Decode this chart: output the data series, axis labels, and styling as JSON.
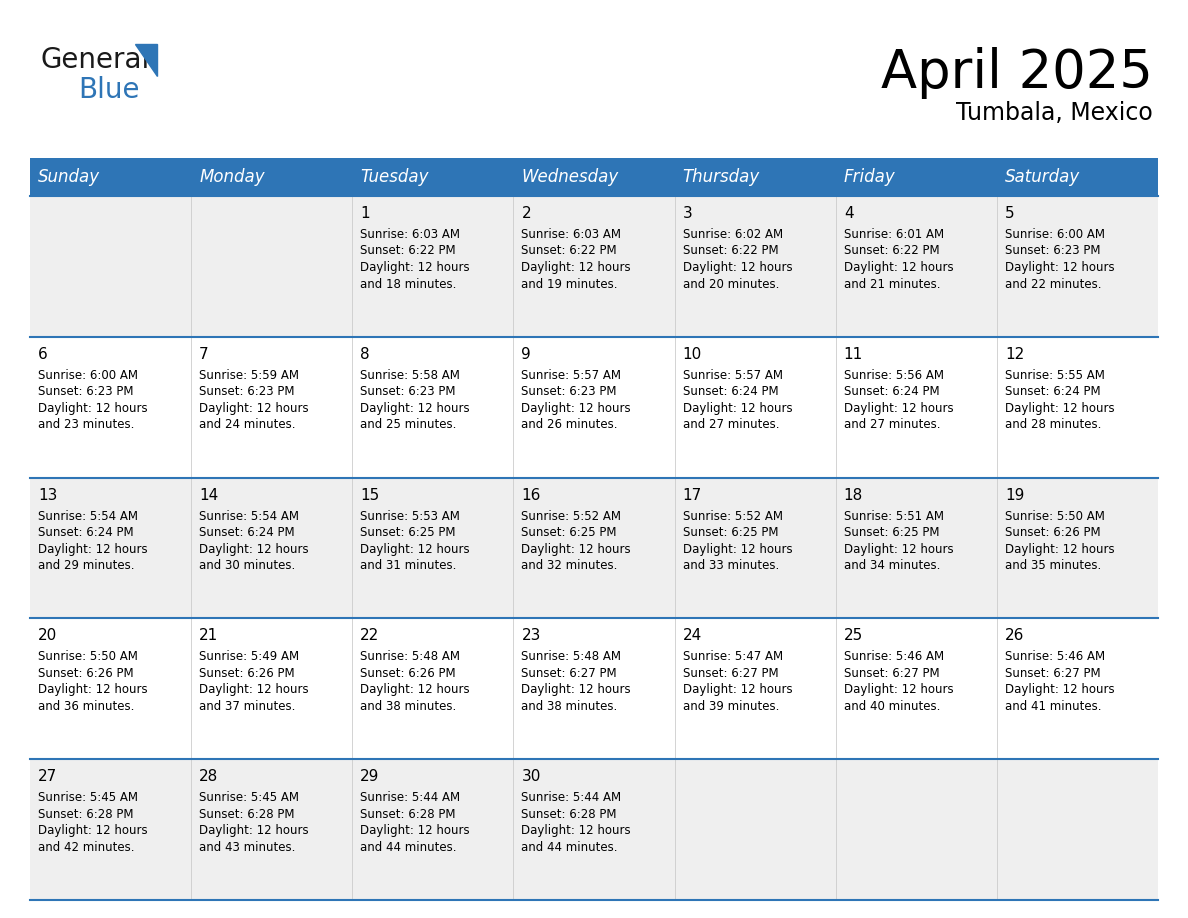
{
  "title": "April 2025",
  "subtitle": "Tumbala, Mexico",
  "header_color": "#2E75B6",
  "header_text_color": "#FFFFFF",
  "cell_bg_white": "#FFFFFF",
  "cell_bg_gray": "#EFEFEF",
  "border_color": "#2E75B6",
  "text_color": "#000000",
  "days_of_week": [
    "Sunday",
    "Monday",
    "Tuesday",
    "Wednesday",
    "Thursday",
    "Friday",
    "Saturday"
  ],
  "weeks": [
    [
      {
        "day": "",
        "sunrise": "",
        "sunset": "",
        "daylight": ""
      },
      {
        "day": "",
        "sunrise": "",
        "sunset": "",
        "daylight": ""
      },
      {
        "day": "1",
        "sunrise": "6:03 AM",
        "sunset": "6:22 PM",
        "daylight": "12 hours and 18 minutes."
      },
      {
        "day": "2",
        "sunrise": "6:03 AM",
        "sunset": "6:22 PM",
        "daylight": "12 hours and 19 minutes."
      },
      {
        "day": "3",
        "sunrise": "6:02 AM",
        "sunset": "6:22 PM",
        "daylight": "12 hours and 20 minutes."
      },
      {
        "day": "4",
        "sunrise": "6:01 AM",
        "sunset": "6:22 PM",
        "daylight": "12 hours and 21 minutes."
      },
      {
        "day": "5",
        "sunrise": "6:00 AM",
        "sunset": "6:23 PM",
        "daylight": "12 hours and 22 minutes."
      }
    ],
    [
      {
        "day": "6",
        "sunrise": "6:00 AM",
        "sunset": "6:23 PM",
        "daylight": "12 hours and 23 minutes."
      },
      {
        "day": "7",
        "sunrise": "5:59 AM",
        "sunset": "6:23 PM",
        "daylight": "12 hours and 24 minutes."
      },
      {
        "day": "8",
        "sunrise": "5:58 AM",
        "sunset": "6:23 PM",
        "daylight": "12 hours and 25 minutes."
      },
      {
        "day": "9",
        "sunrise": "5:57 AM",
        "sunset": "6:23 PM",
        "daylight": "12 hours and 26 minutes."
      },
      {
        "day": "10",
        "sunrise": "5:57 AM",
        "sunset": "6:24 PM",
        "daylight": "12 hours and 27 minutes."
      },
      {
        "day": "11",
        "sunrise": "5:56 AM",
        "sunset": "6:24 PM",
        "daylight": "12 hours and 27 minutes."
      },
      {
        "day": "12",
        "sunrise": "5:55 AM",
        "sunset": "6:24 PM",
        "daylight": "12 hours and 28 minutes."
      }
    ],
    [
      {
        "day": "13",
        "sunrise": "5:54 AM",
        "sunset": "6:24 PM",
        "daylight": "12 hours and 29 minutes."
      },
      {
        "day": "14",
        "sunrise": "5:54 AM",
        "sunset": "6:24 PM",
        "daylight": "12 hours and 30 minutes."
      },
      {
        "day": "15",
        "sunrise": "5:53 AM",
        "sunset": "6:25 PM",
        "daylight": "12 hours and 31 minutes."
      },
      {
        "day": "16",
        "sunrise": "5:52 AM",
        "sunset": "6:25 PM",
        "daylight": "12 hours and 32 minutes."
      },
      {
        "day": "17",
        "sunrise": "5:52 AM",
        "sunset": "6:25 PM",
        "daylight": "12 hours and 33 minutes."
      },
      {
        "day": "18",
        "sunrise": "5:51 AM",
        "sunset": "6:25 PM",
        "daylight": "12 hours and 34 minutes."
      },
      {
        "day": "19",
        "sunrise": "5:50 AM",
        "sunset": "6:26 PM",
        "daylight": "12 hours and 35 minutes."
      }
    ],
    [
      {
        "day": "20",
        "sunrise": "5:50 AM",
        "sunset": "6:26 PM",
        "daylight": "12 hours and 36 minutes."
      },
      {
        "day": "21",
        "sunrise": "5:49 AM",
        "sunset": "6:26 PM",
        "daylight": "12 hours and 37 minutes."
      },
      {
        "day": "22",
        "sunrise": "5:48 AM",
        "sunset": "6:26 PM",
        "daylight": "12 hours and 38 minutes."
      },
      {
        "day": "23",
        "sunrise": "5:48 AM",
        "sunset": "6:27 PM",
        "daylight": "12 hours and 38 minutes."
      },
      {
        "day": "24",
        "sunrise": "5:47 AM",
        "sunset": "6:27 PM",
        "daylight": "12 hours and 39 minutes."
      },
      {
        "day": "25",
        "sunrise": "5:46 AM",
        "sunset": "6:27 PM",
        "daylight": "12 hours and 40 minutes."
      },
      {
        "day": "26",
        "sunrise": "5:46 AM",
        "sunset": "6:27 PM",
        "daylight": "12 hours and 41 minutes."
      }
    ],
    [
      {
        "day": "27",
        "sunrise": "5:45 AM",
        "sunset": "6:28 PM",
        "daylight": "12 hours and 42 minutes."
      },
      {
        "day": "28",
        "sunrise": "5:45 AM",
        "sunset": "6:28 PM",
        "daylight": "12 hours and 43 minutes."
      },
      {
        "day": "29",
        "sunrise": "5:44 AM",
        "sunset": "6:28 PM",
        "daylight": "12 hours and 44 minutes."
      },
      {
        "day": "30",
        "sunrise": "5:44 AM",
        "sunset": "6:28 PM",
        "daylight": "12 hours and 44 minutes."
      },
      {
        "day": "",
        "sunrise": "",
        "sunset": "",
        "daylight": ""
      },
      {
        "day": "",
        "sunrise": "",
        "sunset": "",
        "daylight": ""
      },
      {
        "day": "",
        "sunrise": "",
        "sunset": "",
        "daylight": ""
      }
    ]
  ],
  "logo_general_color": "#1a1a1a",
  "logo_blue_color": "#2E75B6",
  "title_fontsize": 38,
  "subtitle_fontsize": 17,
  "header_fontsize": 12,
  "day_number_fontsize": 11,
  "cell_text_fontsize": 8.5
}
